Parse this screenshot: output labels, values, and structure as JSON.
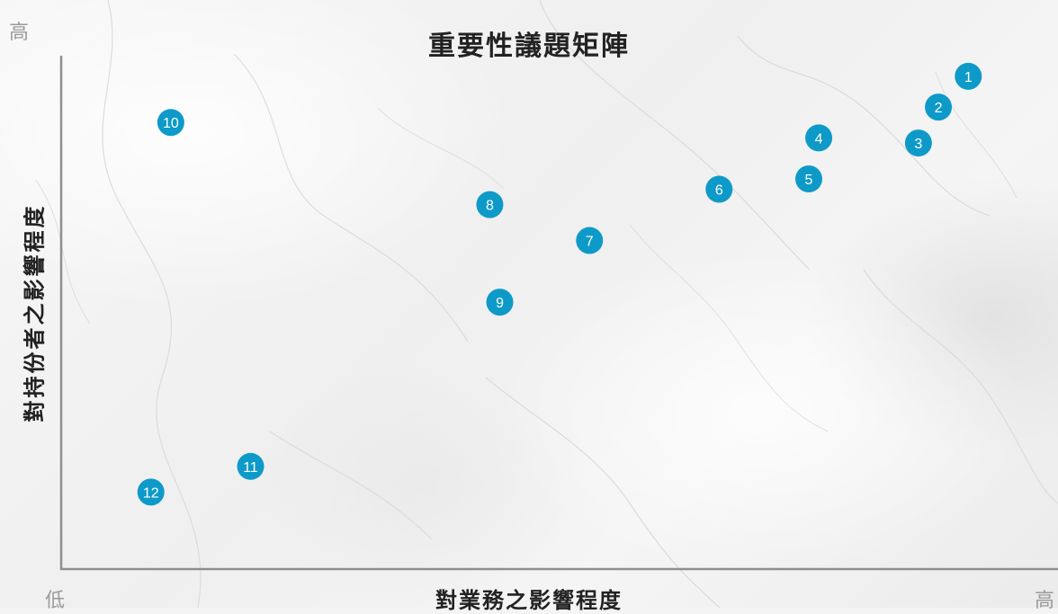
{
  "chart_data": {
    "type": "scatter",
    "title": "重要性議題矩陣",
    "xlabel": "對業務之影響程度",
    "ylabel": "對持份者之影響程度",
    "x_low_label": "低",
    "x_high_label": "高",
    "y_high_label": "高",
    "xlim": [
      0,
      10
    ],
    "ylim": [
      0,
      10
    ],
    "grid": false,
    "points": [
      {
        "label": "1",
        "x": 9.1,
        "y": 9.6
      },
      {
        "label": "2",
        "x": 8.8,
        "y": 9.0
      },
      {
        "label": "3",
        "x": 8.6,
        "y": 8.3
      },
      {
        "label": "4",
        "x": 7.6,
        "y": 8.4
      },
      {
        "label": "5",
        "x": 7.5,
        "y": 7.6
      },
      {
        "label": "6",
        "x": 6.6,
        "y": 7.4
      },
      {
        "label": "7",
        "x": 5.3,
        "y": 6.4
      },
      {
        "label": "8",
        "x": 4.3,
        "y": 7.1
      },
      {
        "label": "9",
        "x": 4.4,
        "y": 5.2
      },
      {
        "label": "10",
        "x": 1.1,
        "y": 8.7
      },
      {
        "label": "11",
        "x": 1.9,
        "y": 2.0
      },
      {
        "label": "12",
        "x": 0.9,
        "y": 1.5
      }
    ],
    "marker_color": "#0e9ac9",
    "marker_text_color": "#ffffff",
    "axis_color": "#8f8f8f"
  }
}
